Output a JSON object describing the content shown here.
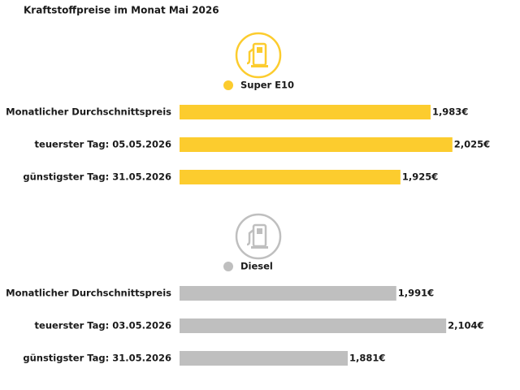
{
  "title": "Kraftstoffpreise im Monat Mai 2026",
  "chart_data": [
    {
      "type": "bar",
      "orientation": "horizontal",
      "categories": [
        "Monatlicher Durchschnittspreis",
        "teuerster Tag: 05.05.2026",
        "günstigster Tag: 31.05.2026"
      ],
      "series": [
        {
          "name": "Super E10",
          "color": "#fccc2e",
          "values": [
            1.983,
            2.025,
            1.925
          ],
          "value_labels": [
            "1,983€",
            "2,025€",
            "1,925€"
          ]
        }
      ],
      "xlim": [
        1.5,
        2.03
      ]
    },
    {
      "type": "bar",
      "orientation": "horizontal",
      "categories": [
        "Monatlicher Durchschnittspreis",
        "teuerster Tag: 03.05.2026",
        "günstigster Tag: 31.05.2026"
      ],
      "series": [
        {
          "name": "Diesel",
          "color": "#bfbfbf",
          "values": [
            1.991,
            2.104,
            1.881
          ],
          "value_labels": [
            "1,991€",
            "2,104€",
            "1,881€"
          ]
        }
      ],
      "xlim": [
        1.5,
        2.124
      ]
    }
  ]
}
